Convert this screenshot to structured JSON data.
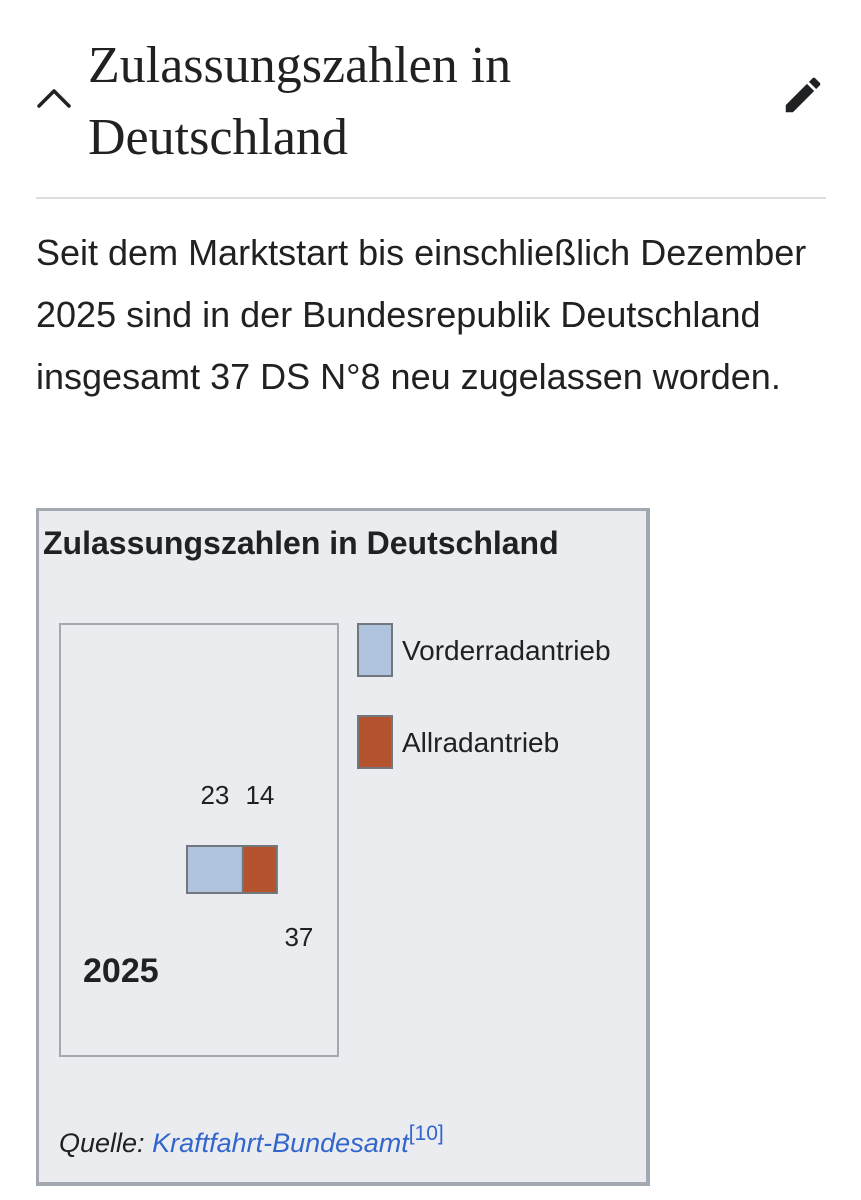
{
  "section": {
    "title": "Zulassungszahlen in Deutschland",
    "collapse_icon": "chevron-up-icon",
    "edit_icon": "pencil-icon"
  },
  "paragraph": "Seit dem Marktstart bis einschließlich Dezember 2025 sind in der Bundesrepublik Deutschland insgesamt 37 DS N°8 neu zugelassen worden.",
  "chart": {
    "title": "Zulassungszahlen in Deutschland",
    "source_prefix": "Quelle:",
    "source_link": "Kraftfahrt-Bundesamt",
    "source_ref": "[10]"
  },
  "chart_data": {
    "type": "bar",
    "stacked": true,
    "orientation": "horizontal",
    "title": "Zulassungszahlen in Deutschland",
    "categories": [
      "2025"
    ],
    "series": [
      {
        "name": "Vorderradantrieb",
        "values": [
          23
        ],
        "color": "#b0c4de"
      },
      {
        "name": "Allradantrieb",
        "values": [
          14
        ],
        "color": "#b5532e"
      }
    ],
    "totals": [
      37
    ],
    "legend_position": "right",
    "grid": false
  },
  "colors": {
    "text": "#202122",
    "link": "#3366cc",
    "chart_background": "#eaecf0",
    "border": "#a2a9b1"
  }
}
